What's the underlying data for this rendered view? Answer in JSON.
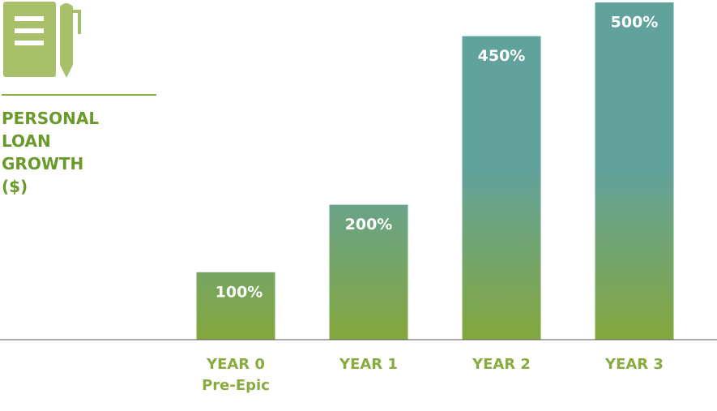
{
  "chart_data": {
    "type": "bar",
    "title": "PERSONAL LOAN GROWTH ($)",
    "categories": [
      "YEAR 0\nPre-Epic",
      "YEAR 1",
      "YEAR 2",
      "YEAR 3"
    ],
    "values": [
      100,
      200,
      450,
      500
    ],
    "value_labels": [
      "100%",
      "200%",
      "450%",
      "500%"
    ],
    "gradient": [
      "#62a29c",
      "#84a73d"
    ]
  }
}
